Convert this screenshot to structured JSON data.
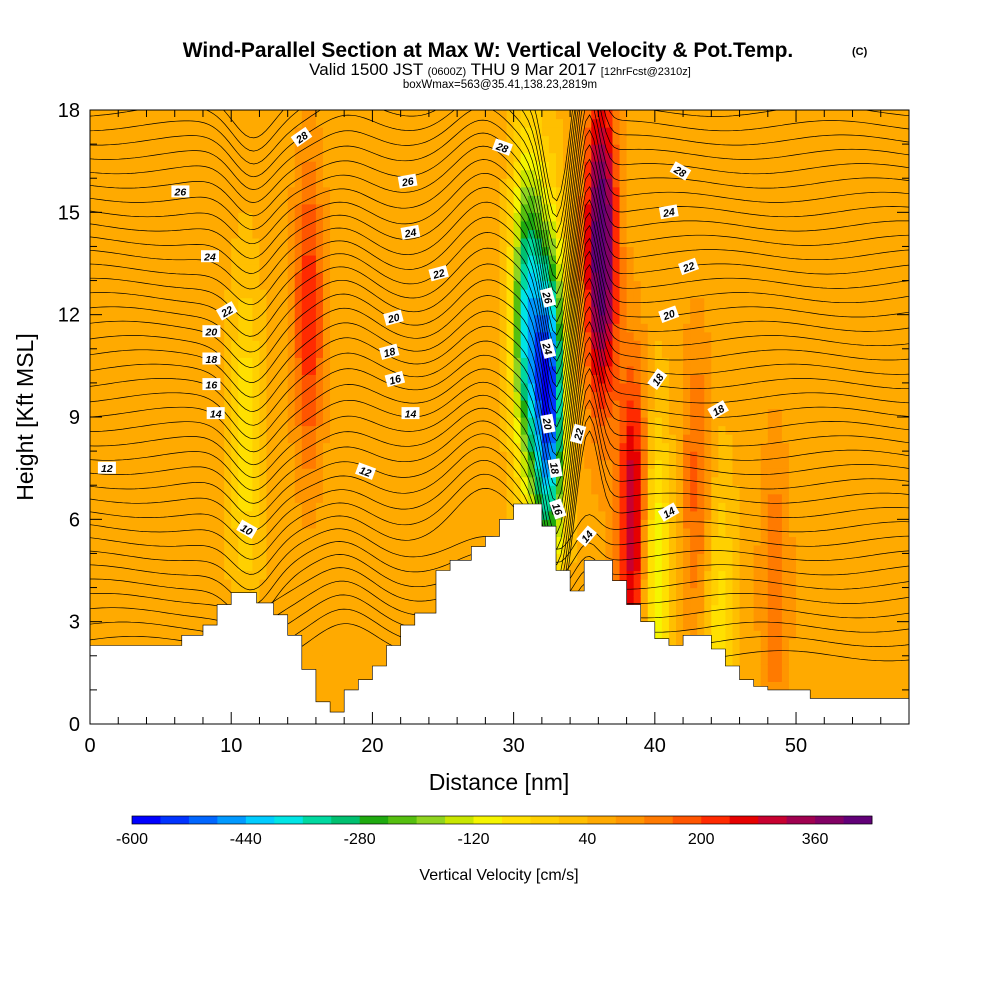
{
  "title": {
    "main": "Wind-Parallel Section at Max W: Vertical Velocity & Pot.Temp.",
    "copyright_mark": "(C)",
    "valid_prefix": "Valid 1500 JST",
    "valid_utc": "(0600Z)",
    "valid_date": "THU 9 Mar 2017",
    "forecast": "[12hrFcst@2310z]",
    "boxline": "boxWmax=563@35.41,138.23,2819m"
  },
  "colors": {
    "terrain": "#ffffff",
    "contour": "#000000",
    "background": "#ffffff",
    "colorbar": [
      "#0000ff",
      "#0033ff",
      "#0066ff",
      "#0099ff",
      "#00ccff",
      "#00e5e5",
      "#00d9a0",
      "#00c070",
      "#1faa10",
      "#55bf10",
      "#8fd420",
      "#c8e600",
      "#f5f500",
      "#ffe000",
      "#ffd000",
      "#ffbf00",
      "#ffaa00",
      "#ff9500",
      "#ff7a00",
      "#ff5500",
      "#ff2a00",
      "#e60000",
      "#c80030",
      "#a00050",
      "#820064",
      "#620078"
    ]
  },
  "chart_data": {
    "type": "heatmap",
    "xlabel": "Distance [nm]",
    "ylabel": "Height [Kft MSL]",
    "xlim": [
      0,
      58
    ],
    "ylim": [
      0,
      18
    ],
    "x_ticks": [
      "0",
      "10",
      "20",
      "30",
      "40",
      "50"
    ],
    "y_ticks": [
      "0",
      "3",
      "6",
      "9",
      "12",
      "15",
      "18"
    ],
    "colorbar": {
      "label": "Vertical Velocity [cm/s]",
      "range": [
        -600,
        440
      ],
      "step": 40,
      "tick_labels": [
        "-600",
        "-440",
        "-280",
        "-120",
        "40",
        "200",
        "360"
      ]
    },
    "terrain": [
      [
        0,
        2.3
      ],
      [
        6.5,
        2.3
      ],
      [
        6.5,
        2.6
      ],
      [
        8,
        2.6
      ],
      [
        8,
        2.9
      ],
      [
        9,
        2.9
      ],
      [
        9,
        3.5
      ],
      [
        10,
        3.5
      ],
      [
        10,
        3.85
      ],
      [
        11.8,
        3.85
      ],
      [
        11.8,
        3.55
      ],
      [
        13,
        3.55
      ],
      [
        13,
        3.2
      ],
      [
        14,
        3.2
      ],
      [
        14,
        2.6
      ],
      [
        15,
        2.6
      ],
      [
        15,
        1.6
      ],
      [
        16,
        1.6
      ],
      [
        16,
        0.65
      ],
      [
        17,
        0.65
      ],
      [
        17,
        0.35
      ],
      [
        18,
        0.35
      ],
      [
        18,
        1
      ],
      [
        19,
        1
      ],
      [
        19,
        1.3
      ],
      [
        20,
        1.3
      ],
      [
        20,
        1.7
      ],
      [
        21,
        1.7
      ],
      [
        21,
        2.3
      ],
      [
        22,
        2.3
      ],
      [
        22,
        2.9
      ],
      [
        23,
        2.9
      ],
      [
        23,
        3.25
      ],
      [
        24.5,
        3.25
      ],
      [
        24.5,
        4.5
      ],
      [
        25.5,
        4.5
      ],
      [
        25.5,
        4.8
      ],
      [
        27,
        4.8
      ],
      [
        27,
        5.2
      ],
      [
        28,
        5.2
      ],
      [
        28,
        5.5
      ],
      [
        29,
        5.5
      ],
      [
        29,
        6
      ],
      [
        30,
        6
      ],
      [
        30,
        6.45
      ],
      [
        32,
        6.45
      ],
      [
        32,
        5.8
      ],
      [
        33,
        5.8
      ],
      [
        33,
        4.5
      ],
      [
        34,
        4.5
      ],
      [
        34,
        3.9
      ],
      [
        35,
        3.9
      ],
      [
        35,
        4.8
      ],
      [
        37,
        4.8
      ],
      [
        37,
        4.2
      ],
      [
        38,
        4.2
      ],
      [
        38,
        3.5
      ],
      [
        39,
        3.5
      ],
      [
        39,
        3
      ],
      [
        40,
        3
      ],
      [
        40,
        2.5
      ],
      [
        41,
        2.5
      ],
      [
        41,
        2.3
      ],
      [
        42,
        2.3
      ],
      [
        42,
        2.6
      ],
      [
        44,
        2.6
      ],
      [
        44,
        2.2
      ],
      [
        45,
        2.2
      ],
      [
        45,
        1.7
      ],
      [
        46,
        1.7
      ],
      [
        46,
        1.3
      ],
      [
        47,
        1.3
      ],
      [
        47,
        1.1
      ],
      [
        48,
        1.1
      ],
      [
        48,
        1
      ],
      [
        51,
        1
      ],
      [
        51,
        0.75
      ],
      [
        58,
        0.75
      ]
    ],
    "w_features": [
      {
        "x": 11,
        "y": 8.5,
        "w": -130
      },
      {
        "x": 15.5,
        "y": 12,
        "w": 180
      },
      {
        "x": 31,
        "y": 12,
        "w": -420
      },
      {
        "x": 32.5,
        "y": 9.5,
        "w": -600
      },
      {
        "x": 36.2,
        "y": 14,
        "w": 420
      },
      {
        "x": 38.5,
        "y": 6,
        "w": 280
      },
      {
        "x": 40,
        "y": 4.5,
        "w": -200
      },
      {
        "x": 43,
        "y": 7,
        "w": 120
      },
      {
        "x": 44.5,
        "y": 3,
        "w": -120
      },
      {
        "x": 48.5,
        "y": 4,
        "w": 100
      }
    ],
    "contour_labels": [
      {
        "text": "28",
        "x": 15,
        "y": 17.2,
        "rot": -35
      },
      {
        "text": "26",
        "x": 6.4,
        "y": 15.6,
        "rot": 0
      },
      {
        "text": "26",
        "x": 22.5,
        "y": 15.9,
        "rot": -10
      },
      {
        "text": "28",
        "x": 29.2,
        "y": 16.9,
        "rot": 20
      },
      {
        "text": "28",
        "x": 41.8,
        "y": 16.2,
        "rot": 30
      },
      {
        "text": "24",
        "x": 8.5,
        "y": 13.7,
        "rot": 0
      },
      {
        "text": "24",
        "x": 22.7,
        "y": 14.4,
        "rot": -10
      },
      {
        "text": "24",
        "x": 41,
        "y": 15,
        "rot": -10
      },
      {
        "text": "22",
        "x": 24.7,
        "y": 13.2,
        "rot": -15
      },
      {
        "text": "22",
        "x": 9.7,
        "y": 12.1,
        "rot": -30
      },
      {
        "text": "22",
        "x": 42.4,
        "y": 13.4,
        "rot": -20
      },
      {
        "text": "20",
        "x": 8.6,
        "y": 11.5,
        "rot": 0
      },
      {
        "text": "20",
        "x": 21.5,
        "y": 11.9,
        "rot": -15
      },
      {
        "text": "20",
        "x": 41,
        "y": 12,
        "rot": -20
      },
      {
        "text": "18",
        "x": 8.6,
        "y": 10.7,
        "rot": 0
      },
      {
        "text": "18",
        "x": 21.2,
        "y": 10.9,
        "rot": -15
      },
      {
        "text": "18",
        "x": 40.2,
        "y": 10.1,
        "rot": -55
      },
      {
        "text": "18",
        "x": 44.5,
        "y": 9.2,
        "rot": -30
      },
      {
        "text": "16",
        "x": 8.6,
        "y": 9.95,
        "rot": 0
      },
      {
        "text": "16",
        "x": 21.6,
        "y": 10.1,
        "rot": -15
      },
      {
        "text": "14",
        "x": 8.9,
        "y": 9.1,
        "rot": 0
      },
      {
        "text": "14",
        "x": 22.7,
        "y": 9.1,
        "rot": 0
      },
      {
        "text": "14",
        "x": 41,
        "y": 6.2,
        "rot": -30
      },
      {
        "text": "12",
        "x": 1.2,
        "y": 7.5,
        "rot": 0
      },
      {
        "text": "12",
        "x": 19.5,
        "y": 7.4,
        "rot": 20
      },
      {
        "text": "10",
        "x": 11.1,
        "y": 5.7,
        "rot": 30
      },
      {
        "text": "26",
        "x": 32.4,
        "y": 12.5,
        "rot": 75
      },
      {
        "text": "24",
        "x": 32.4,
        "y": 11,
        "rot": 75
      },
      {
        "text": "22",
        "x": 34.6,
        "y": 8.5,
        "rot": -75
      },
      {
        "text": "20",
        "x": 32.4,
        "y": 8.8,
        "rot": 80
      },
      {
        "text": "18",
        "x": 32.9,
        "y": 7.5,
        "rot": 80
      },
      {
        "text": "16",
        "x": 33.1,
        "y": 6.3,
        "rot": 70
      },
      {
        "text": "14",
        "x": 35.2,
        "y": 5.5,
        "rot": -50
      }
    ]
  }
}
